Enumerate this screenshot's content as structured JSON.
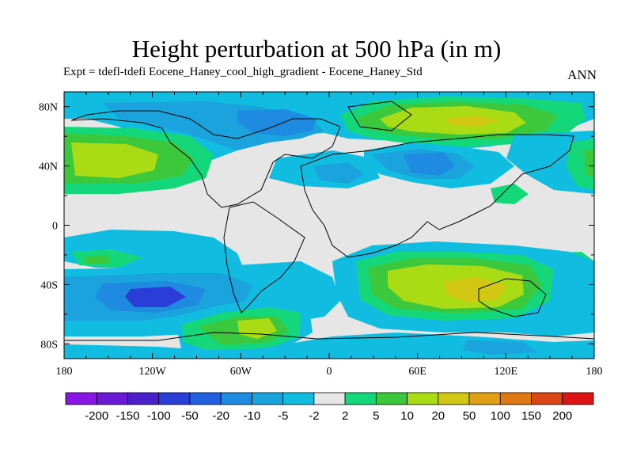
{
  "title": "Height perturbation at 500 hPa (in m)",
  "subtitle": "Expt = tdefl-tdefi  Eocene_Haney_cool_high_gradient - Eocene_Haney_Std",
  "season": "ANN",
  "chart_data": {
    "type": "heatmap",
    "projection": "cylindrical-equidistant",
    "xlim": [
      -180,
      180
    ],
    "ylim": [
      -90,
      90
    ],
    "x_ticks": [
      "180",
      "120W",
      "60W",
      "0",
      "60E",
      "120E",
      "180"
    ],
    "y_ticks": [
      "80N",
      "40N",
      "0",
      "40S",
      "80S"
    ],
    "colorbar": {
      "levels": [
        "-200",
        "-150",
        "-100",
        "-50",
        "-20",
        "-10",
        "-5",
        "-2",
        "2",
        "5",
        "10",
        "20",
        "50",
        "100",
        "150",
        "200"
      ],
      "colors": [
        "#8a16e6",
        "#6a19d6",
        "#4b1fc8",
        "#2a3dd6",
        "#1f5fe0",
        "#1e8ae0",
        "#1aa3dc",
        "#10bde0",
        "#e6e6e6",
        "#14d77a",
        "#3cc83c",
        "#a9dc14",
        "#d2c814",
        "#e1a014",
        "#e07814",
        "#dc4614",
        "#dc1414"
      ]
    }
  }
}
